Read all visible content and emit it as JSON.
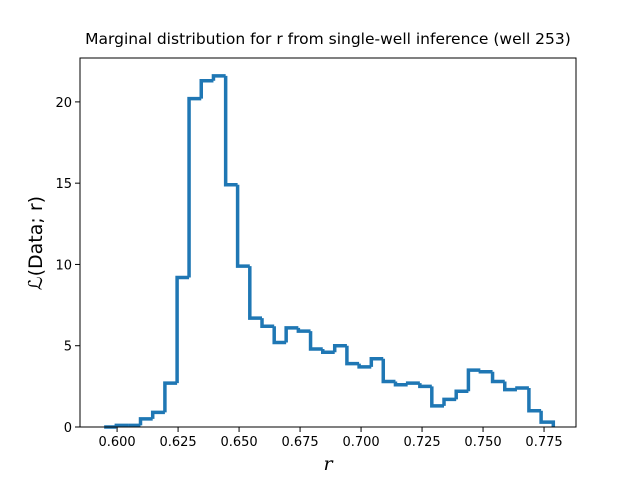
{
  "chart_data": {
    "type": "histogram",
    "title": "Marginal distribution for r from single-well inference (well 253)",
    "x_label": "r",
    "y_label": "ℒ(Data; r)",
    "bins": [
      0.5947,
      0.5997,
      0.6047,
      0.6096,
      0.6146,
      0.6196,
      0.6246,
      0.6295,
      0.6345,
      0.6395,
      0.6445,
      0.6494,
      0.6544,
      0.6594,
      0.6644,
      0.6693,
      0.6743,
      0.6793,
      0.6843,
      0.6892,
      0.6942,
      0.6992,
      0.7042,
      0.7091,
      0.7141,
      0.7191,
      0.7241,
      0.729,
      0.734,
      0.739,
      0.744,
      0.7489,
      0.7539,
      0.7589,
      0.7639,
      0.7688,
      0.7738,
      0.7788
    ],
    "counts": [
      0,
      0.1,
      0.1,
      0.5,
      0.9,
      2.7,
      9.2,
      20.2,
      21.3,
      21.6,
      14.9,
      9.9,
      6.7,
      6.2,
      5.2,
      6.1,
      5.9,
      4.8,
      4.6,
      5.0,
      3.9,
      3.7,
      4.2,
      2.8,
      2.6,
      2.7,
      2.5,
      1.3,
      1.7,
      2.2,
      3.5,
      3.4,
      2.8,
      2.3,
      2.4,
      1.0,
      0.3
    ],
    "color": "#1f77b4",
    "xlim": [
      0.5848,
      0.7881
    ],
    "ylim": [
      0,
      22.7
    ],
    "xticks": [
      {
        "value": 0.6,
        "label": "0.600"
      },
      {
        "value": 0.625,
        "label": "0.625"
      },
      {
        "value": 0.65,
        "label": "0.650"
      },
      {
        "value": 0.675,
        "label": "0.675"
      },
      {
        "value": 0.7,
        "label": "0.700"
      },
      {
        "value": 0.725,
        "label": "0.725"
      },
      {
        "value": 0.75,
        "label": "0.750"
      },
      {
        "value": 0.775,
        "label": "0.775"
      }
    ],
    "yticks": [
      0,
      5,
      10,
      15,
      20
    ]
  }
}
